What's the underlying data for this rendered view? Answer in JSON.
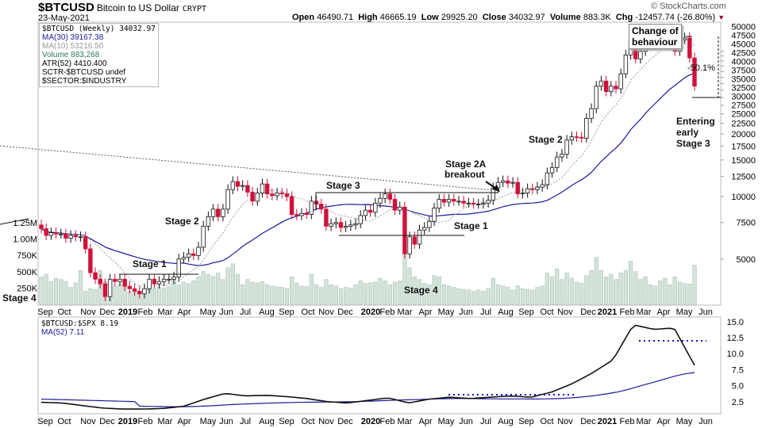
{
  "header": {
    "symbol": "$BTCUSD",
    "name": "Bitcoin to US Dollar",
    "exchange": "CRYPT",
    "date": "23-May-2021",
    "brand": "© StockCharts.com",
    "open_label": "Open",
    "open": "46490.71",
    "high_label": "High",
    "high": "46665.19",
    "low_label": "Low",
    "low": "29925.20",
    "close_label": "Close",
    "close": "34032.97",
    "volume_label": "Volume",
    "volume": "883.3K",
    "chg_label": "Chg",
    "chg": "-12457.74 (-26.80%)",
    "chg_arrow": "▼"
  },
  "legend": {
    "main": "$BTCUSD (Weekly) 34032.97",
    "ma30": "MA(30) 39167.38",
    "ma10": "MA(10) 53216.50",
    "volume": "Volume 883,268",
    "atr": "ATR(52) 4410.400",
    "sctr": "SCTR-$BTCUSD undef",
    "sector": "$SECTOR:$INDUSTRY"
  },
  "lower_legend": {
    "ratio": "$BTCUSD:$SPX 8.19",
    "ma52": "MA(52) 7.11"
  },
  "annotations": {
    "stage4_left": "Stage 4",
    "stage1_2019": "Stage 1",
    "stage2_2019": "Stage 2",
    "stage3": "Stage 3",
    "stage4_2020": "Stage 4",
    "stage1_2020": "Stage 1",
    "stage2a": "Stage 2A",
    "breakout": "breakout",
    "stage2_2020": "Stage 2",
    "change_of_behaviour_1": "Change of",
    "change_of_behaviour_2": "behaviour",
    "pct": "-50.1%",
    "entering_1": "Entering",
    "entering_2": "early",
    "entering_3": "Stage 3"
  },
  "colors": {
    "up": "#ffffff",
    "down": "#d0103a",
    "ma30": "#1a1a9a",
    "ma10": "#999999",
    "volume": "#d4e3da",
    "ratio": "#111111",
    "ma52": "#1a1a9a"
  },
  "chart_data": {
    "type": "candlestick",
    "title": "$BTCUSD (Weekly)",
    "x_labels": [
      "Sep",
      "Oct",
      "Nov",
      "Dec",
      "2019",
      "Feb",
      "Mar",
      "Apr",
      "May",
      "Jun",
      "Jul",
      "Aug",
      "Sep",
      "Oct",
      "Nov",
      "Dec",
      "2020",
      "Feb",
      "Mar",
      "Apr",
      "May",
      "Jun",
      "Jul",
      "Aug",
      "Sep",
      "Oct",
      "Nov",
      "Dec",
      "2021",
      "Feb",
      "Mar",
      "Apr",
      "May",
      "Jun"
    ],
    "price_ticks": [
      50000,
      47500,
      45000,
      42500,
      40000,
      37500,
      35000,
      32500,
      30000,
      27500,
      25000,
      22500,
      20000,
      17500,
      15000,
      12500,
      10000,
      7500,
      5000
    ],
    "volume_ticks": [
      "1.25M",
      "1.00M",
      "750K",
      "500K",
      "250K"
    ],
    "yscale": "log",
    "closes": [
      7000,
      6500,
      6700,
      6600,
      6600,
      6300,
      6500,
      6400,
      6400,
      5600,
      4300,
      4000,
      3800,
      3300,
      4000,
      3900,
      4000,
      3700,
      3600,
      3500,
      3400,
      3600,
      4000,
      3800,
      3900,
      4000,
      4000,
      4100,
      5000,
      5100,
      5300,
      5200,
      5700,
      7200,
      8000,
      8700,
      8000,
      8700,
      10800,
      11800,
      11200,
      11300,
      10500,
      9500,
      10400,
      11500,
      10300,
      10100,
      10400,
      10300,
      10000,
      8200,
      8100,
      8300,
      8200,
      9500,
      9200,
      8700,
      7200,
      7400,
      7500,
      7100,
      7200,
      7300,
      7400,
      8100,
      8600,
      8400,
      9300,
      9800,
      10300,
      9700,
      8600,
      8900,
      5300,
      6400,
      5900,
      6900,
      7100,
      7600,
      8800,
      9700,
      9400,
      9700,
      9500,
      9500,
      9300,
      9300,
      9200,
      9200,
      9300,
      9600,
      11000,
      11700,
      11900,
      11600,
      11700,
      10300,
      10400,
      10900,
      10800,
      11100,
      11400,
      13000,
      13800,
      15500,
      16000,
      18700,
      19400,
      19300,
      19100,
      23800,
      26500,
      34000,
      36000,
      32000,
      34000,
      33000,
      39000,
      48000,
      57000,
      46000,
      50000,
      59000,
      58000,
      55000,
      58000,
      60000,
      59000,
      50000,
      57000,
      58000,
      46500,
      34033
    ],
    "first_open": 7300,
    "volume_k": [
      420,
      460,
      350,
      400,
      380,
      350,
      260,
      330,
      520,
      200,
      240,
      230,
      520,
      350,
      330,
      280,
      300,
      260,
      200,
      220,
      180,
      210,
      230,
      240,
      260,
      250,
      270,
      380,
      300,
      340,
      320,
      360,
      420,
      500,
      460,
      430,
      480,
      380,
      560,
      620,
      460,
      300,
      380,
      340,
      330,
      350,
      300,
      280,
      270,
      260,
      240,
      420,
      330,
      280,
      270,
      460,
      300,
      260,
      380,
      300,
      280,
      240,
      260,
      250,
      300,
      360,
      320,
      330,
      340,
      400,
      360,
      300,
      340,
      360,
      820,
      560,
      420,
      380,
      320,
      300,
      440,
      420,
      300,
      280,
      260,
      240,
      230,
      220,
      200,
      220,
      200,
      240,
      400,
      300,
      280,
      260,
      220,
      280,
      240,
      230,
      220,
      260,
      280,
      480,
      420,
      540,
      380,
      480,
      400,
      340,
      320,
      440,
      520,
      720,
      520,
      420,
      460,
      380,
      480,
      520,
      660,
      500,
      380,
      420,
      300,
      280,
      360,
      400,
      300,
      420,
      340,
      320,
      310,
      600
    ],
    "ratio_monthly": [
      2.4,
      2.3,
      1.9,
      1.5,
      1.35,
      1.35,
      1.45,
      1.8,
      2.9,
      3.8,
      3.4,
      3.5,
      3.3,
      3.0,
      2.5,
      2.3,
      2.7,
      3.1,
      2.3,
      2.9,
      3.2,
      3.0,
      3.2,
      3.4,
      3.2,
      4.0,
      5.3,
      7.0,
      9.0,
      14.5,
      13.8,
      14.0,
      8.19
    ],
    "ratio_ticks": [
      15.0,
      12.5,
      10.0,
      7.5,
      5.0,
      2.5
    ],
    "ma_periods": {
      "ma30": 30,
      "ma10": 10,
      "ma52": 52
    }
  }
}
